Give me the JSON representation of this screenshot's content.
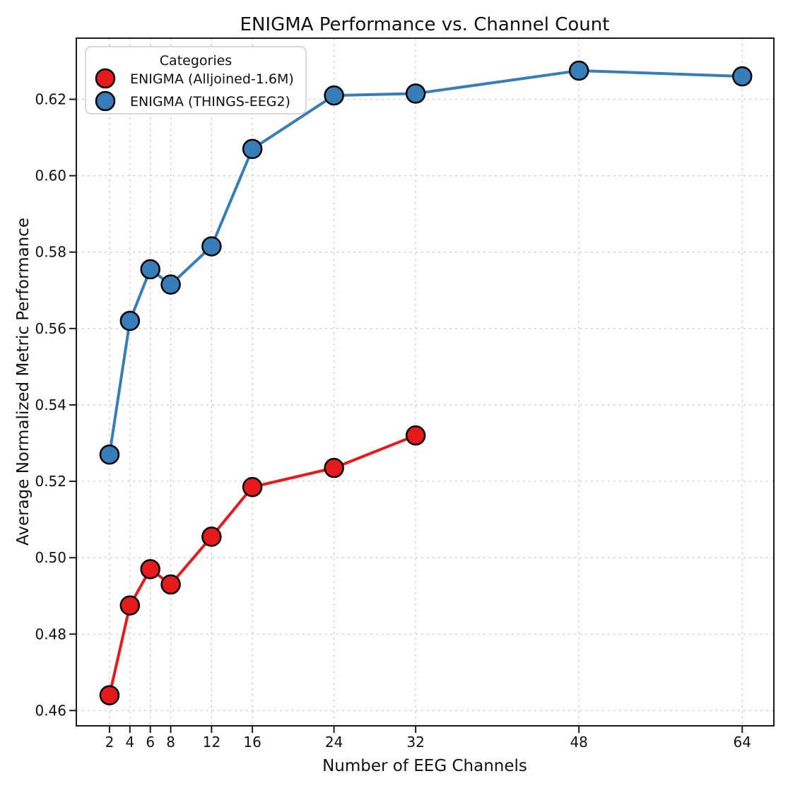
{
  "figure": {
    "title": "ENIGMA Performance vs. Channel Count",
    "xlabel": "Number of EEG Channels",
    "ylabel": "Average Normalized Metric Performance"
  },
  "legend": {
    "title": "Categories",
    "entries": [
      "ENIGMA (Alljoined-1.6M)",
      "ENIGMA (THINGS-EEG2)"
    ]
  },
  "chart_data": {
    "type": "line",
    "title": "ENIGMA Performance vs. Channel Count",
    "xlabel": "Number of EEG Channels",
    "ylabel": "Average Normalized Metric Performance",
    "legend_title": "Categories",
    "legend_position": "upper left",
    "grid": true,
    "x_ticks": [
      2,
      4,
      6,
      8,
      12,
      16,
      24,
      32,
      48,
      64
    ],
    "y_ticks": [
      0.46,
      0.48,
      0.5,
      0.52,
      0.54,
      0.56,
      0.58,
      0.6,
      0.62
    ],
    "xlim": [
      -1.25,
      67.1
    ],
    "ylim": [
      0.456,
      0.636
    ],
    "series": [
      {
        "name": "ENIGMA (Alljoined-1.6M)",
        "color": "#e41a1c",
        "x": [
          2,
          4,
          6,
          8,
          12,
          16,
          24,
          32
        ],
        "y": [
          0.464,
          0.4875,
          0.497,
          0.493,
          0.5055,
          0.5185,
          0.5235,
          0.532
        ]
      },
      {
        "name": "ENIGMA (THINGS-EEG2)",
        "color": "#377eb8",
        "x": [
          2,
          4,
          6,
          8,
          12,
          16,
          24,
          32,
          48,
          64
        ],
        "y": [
          0.527,
          0.562,
          0.5755,
          0.5715,
          0.5815,
          0.607,
          0.621,
          0.6215,
          0.6275,
          0.626
        ]
      }
    ],
    "marker": {
      "radius": 13,
      "edge_color": "#000000",
      "edge_width": 2.5
    },
    "line_width": 4
  },
  "colors": {
    "background": "#ffffff",
    "grid": "#cccccc",
    "spine": "#1a1a1a",
    "text": "#111111",
    "legend_border": "#cccccc"
  }
}
